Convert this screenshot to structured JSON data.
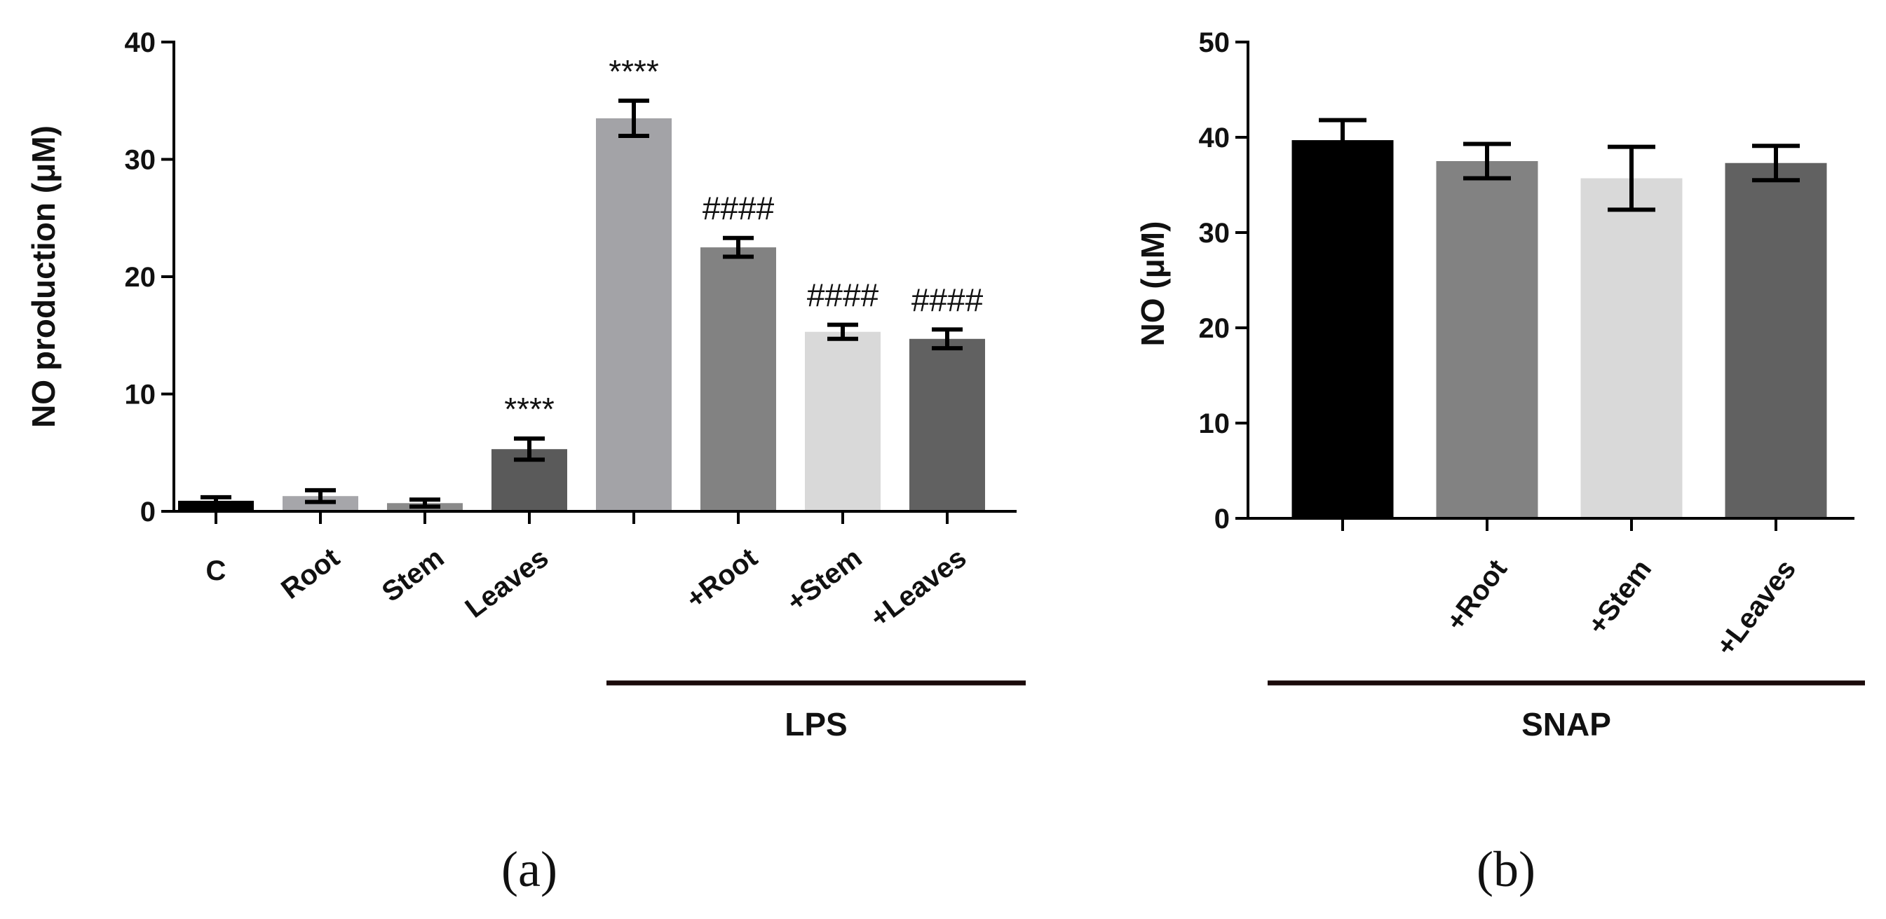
{
  "chart_data": [
    {
      "type": "bar",
      "panel_label": "(a)",
      "ylabel": "NO production (μM)",
      "ylim": [
        0,
        40
      ],
      "yticks": [
        0,
        10,
        20,
        30,
        40
      ],
      "categories": [
        "C",
        "Root",
        "Stem",
        "Leaves",
        "",
        "+Root",
        "+Stem",
        "+Leaves"
      ],
      "values": [
        0.9,
        1.3,
        0.7,
        5.3,
        33.5,
        22.5,
        15.3,
        14.7
      ],
      "errors": [
        0.3,
        0.5,
        0.3,
        0.9,
        1.5,
        0.8,
        0.6,
        0.8
      ],
      "colors": [
        "#000000",
        "#a6a6aa",
        "#8a8a8a",
        "#5a5a5a",
        "#a3a3a7",
        "#828282",
        "#d9d9d9",
        "#616161"
      ],
      "annotations": [
        "",
        "",
        "",
        "****",
        "****",
        "####",
        "####",
        "####"
      ],
      "group": {
        "label": "LPS",
        "from_index": 4,
        "to_index": 7
      }
    },
    {
      "type": "bar",
      "panel_label": "(b)",
      "ylabel": "NO (μM)",
      "ylim": [
        0,
        50
      ],
      "yticks": [
        0,
        10,
        20,
        30,
        40,
        50
      ],
      "categories": [
        "",
        "+Root",
        "+Stem",
        "+Leaves"
      ],
      "values": [
        39.7,
        37.5,
        35.7,
        37.3
      ],
      "errors": [
        2.1,
        1.8,
        3.3,
        1.8
      ],
      "colors": [
        "#000000",
        "#828282",
        "#d9d9d9",
        "#616161"
      ],
      "annotations": [
        "",
        "",
        "",
        ""
      ],
      "group": {
        "label": "SNAP",
        "from_index": 0,
        "to_index": 3
      }
    }
  ]
}
